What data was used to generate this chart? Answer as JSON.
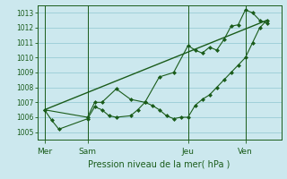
{
  "bg_color": "#cce8ee",
  "grid_color": "#99ccd6",
  "line_color": "#1a5c1a",
  "marker_color": "#1a5c1a",
  "xlabel": "Pression niveau de la mer( hPa )",
  "xlabel_color": "#1a5c1a",
  "tick_color": "#1a5c1a",
  "ylim": [
    1004.5,
    1013.5
  ],
  "yticks": [
    1005,
    1006,
    1007,
    1008,
    1009,
    1010,
    1011,
    1012,
    1013
  ],
  "day_labels": [
    "Mer",
    "Sam",
    "Jeu",
    "Ven"
  ],
  "day_positions": [
    1,
    4,
    11,
    15
  ],
  "series1_x": [
    1,
    1.5,
    2,
    4,
    4.5,
    5,
    5.5,
    6,
    7,
    7.5,
    8,
    8.5,
    9,
    9.5,
    10,
    10.5,
    11,
    11.5,
    12,
    12.5,
    13,
    13.5,
    14,
    14.5,
    15,
    15.5,
    16,
    16.5
  ],
  "series1_y": [
    1006.5,
    1005.8,
    1005.2,
    1005.9,
    1006.7,
    1006.5,
    1006.1,
    1006.0,
    1006.1,
    1006.5,
    1007.0,
    1006.8,
    1006.5,
    1006.1,
    1005.9,
    1006.0,
    1006.0,
    1006.8,
    1007.2,
    1007.5,
    1008.0,
    1008.5,
    1009.0,
    1009.5,
    1010.0,
    1011.0,
    1012.0,
    1012.5
  ],
  "series2_x": [
    1,
    4,
    4.5,
    5,
    6,
    7,
    8,
    9,
    10,
    11,
    11.5,
    12,
    12.5,
    13,
    13.5,
    14,
    14.5,
    15,
    15.5,
    16,
    16.5
  ],
  "series2_y": [
    1006.5,
    1006.0,
    1007.0,
    1007.0,
    1007.9,
    1007.2,
    1007.0,
    1008.7,
    1009.0,
    1010.8,
    1010.5,
    1010.3,
    1010.7,
    1010.5,
    1011.2,
    1012.1,
    1012.2,
    1013.2,
    1013.0,
    1012.5,
    1012.3
  ],
  "series3_x": [
    1,
    16.5
  ],
  "series3_y": [
    1006.5,
    1012.5
  ],
  "xlim": [
    0.5,
    17.5
  ]
}
